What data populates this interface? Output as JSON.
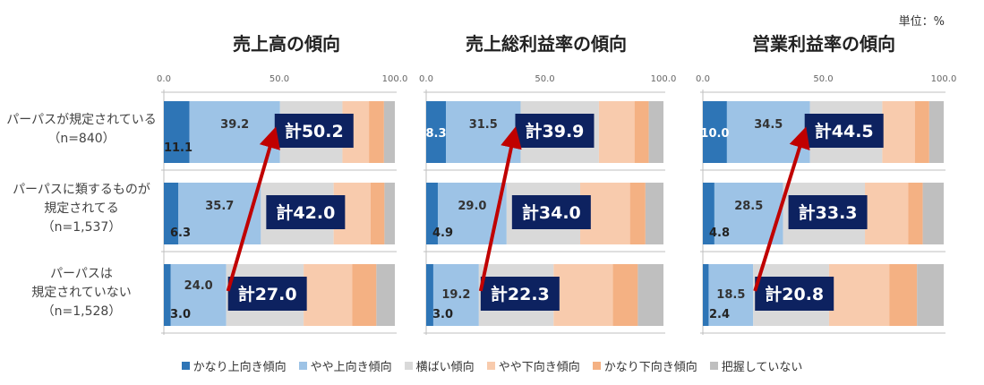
{
  "unit_label": "単位：%",
  "row_labels": [
    [
      "パーパスが規定されている",
      "（n=840）"
    ],
    [
      "パーパスに類するものが",
      "規定されてる",
      "（n=1,537）"
    ],
    [
      "パーパスは",
      "規定されていない",
      "（n=1,528）"
    ]
  ],
  "legend": [
    {
      "label": "かなり上向き傾向",
      "color": "#2e75b6"
    },
    {
      "label": "やや上向き傾向",
      "color": "#9dc3e6"
    },
    {
      "label": "横ばい傾向",
      "color": "#d9d9d9"
    },
    {
      "label": "やや下向き傾向",
      "color": "#f8cbad"
    },
    {
      "label": "かなり下向き傾向",
      "color": "#f4b183"
    },
    {
      "label": "把握していない",
      "color": "#bfbfbf"
    }
  ],
  "chart_data": [
    {
      "type": "bar",
      "stacked": true,
      "orientation": "horizontal",
      "title": "売上高の傾向",
      "xlim": [
        0,
        100
      ],
      "x_ticks": [
        "0.0",
        "50.0",
        "100.0"
      ],
      "categories": [
        "パーパスが規定されている（n=840）",
        "パーパスに類するものが規定されてる（n=1,537）",
        "パーパスは規定されていない（n=1,528）"
      ],
      "series": [
        {
          "name": "かなり上向き傾向",
          "values": [
            11.1,
            6.3,
            3.0
          ],
          "labels": [
            "11.1",
            "6.3",
            "3.0"
          ]
        },
        {
          "name": "やや上向き傾向",
          "values": [
            39.2,
            35.7,
            24.0
          ],
          "labels": [
            "39.2",
            "35.7",
            "24.0"
          ]
        },
        {
          "name": "横ばい傾向",
          "values": [
            27.0,
            31.5,
            33.5
          ]
        },
        {
          "name": "やや下向き傾向",
          "values": [
            11.5,
            16.0,
            21.0
          ]
        },
        {
          "name": "かなり下向き傾向",
          "values": [
            6.5,
            6.0,
            10.5
          ]
        },
        {
          "name": "把握していない",
          "values": [
            4.7,
            4.5,
            8.0
          ]
        }
      ],
      "totals": [
        "計50.2",
        "計42.0",
        "計27.0"
      ]
    },
    {
      "type": "bar",
      "stacked": true,
      "orientation": "horizontal",
      "title": "売上総利益率の傾向",
      "xlim": [
        0,
        100
      ],
      "x_ticks": [
        "0.0",
        "50.0",
        "100.0"
      ],
      "categories": [
        "パーパスが規定されている（n=840）",
        "パーパスに類するものが規定されてる（n=1,537）",
        "パーパスは規定されていない（n=1,528）"
      ],
      "series": [
        {
          "name": "かなり上向き傾向",
          "values": [
            8.3,
            4.9,
            3.0
          ],
          "labels": [
            "8.3",
            "4.9",
            "3.0"
          ]
        },
        {
          "name": "やや上向き傾向",
          "values": [
            31.5,
            29.0,
            19.2
          ],
          "labels": [
            "31.5",
            "29.0",
            "19.2"
          ]
        },
        {
          "name": "横ばい傾向",
          "values": [
            33.0,
            31.0,
            31.5
          ]
        },
        {
          "name": "やや下向き傾向",
          "values": [
            15.0,
            21.0,
            25.0
          ]
        },
        {
          "name": "かなり下向き傾向",
          "values": [
            6.0,
            6.5,
            10.5
          ]
        },
        {
          "name": "把握していない",
          "values": [
            6.2,
            7.6,
            10.8
          ]
        }
      ],
      "totals": [
        "計39.9",
        "計34.0",
        "計22.3"
      ]
    },
    {
      "type": "bar",
      "stacked": true,
      "orientation": "horizontal",
      "title": "営業利益率の傾向",
      "xlim": [
        0,
        100
      ],
      "x_ticks": [
        "0.0",
        "50.0",
        "100.0"
      ],
      "categories": [
        "パーパスが規定されている（n=840）",
        "パーパスに類するものが規定されてる（n=1,537）",
        "パーパスは規定されていない（n=1,528）"
      ],
      "series": [
        {
          "name": "かなり上向き傾向",
          "values": [
            10.0,
            4.8,
            2.4
          ],
          "labels": [
            "10.0",
            "4.8",
            "2.4"
          ]
        },
        {
          "name": "やや上向き傾向",
          "values": [
            34.5,
            28.5,
            18.5
          ],
          "labels": [
            "34.5",
            "28.5",
            "18.5"
          ]
        },
        {
          "name": "横ばい傾向",
          "values": [
            30.0,
            34.0,
            31.5
          ]
        },
        {
          "name": "やや下向き傾向",
          "values": [
            13.5,
            18.0,
            25.0
          ]
        },
        {
          "name": "かなり下向き傾向",
          "values": [
            6.0,
            6.0,
            11.5
          ]
        },
        {
          "name": "把握していない",
          "values": [
            6.0,
            8.7,
            11.1
          ]
        }
      ],
      "totals": [
        "計44.5",
        "計33.3",
        "計20.8"
      ]
    }
  ]
}
